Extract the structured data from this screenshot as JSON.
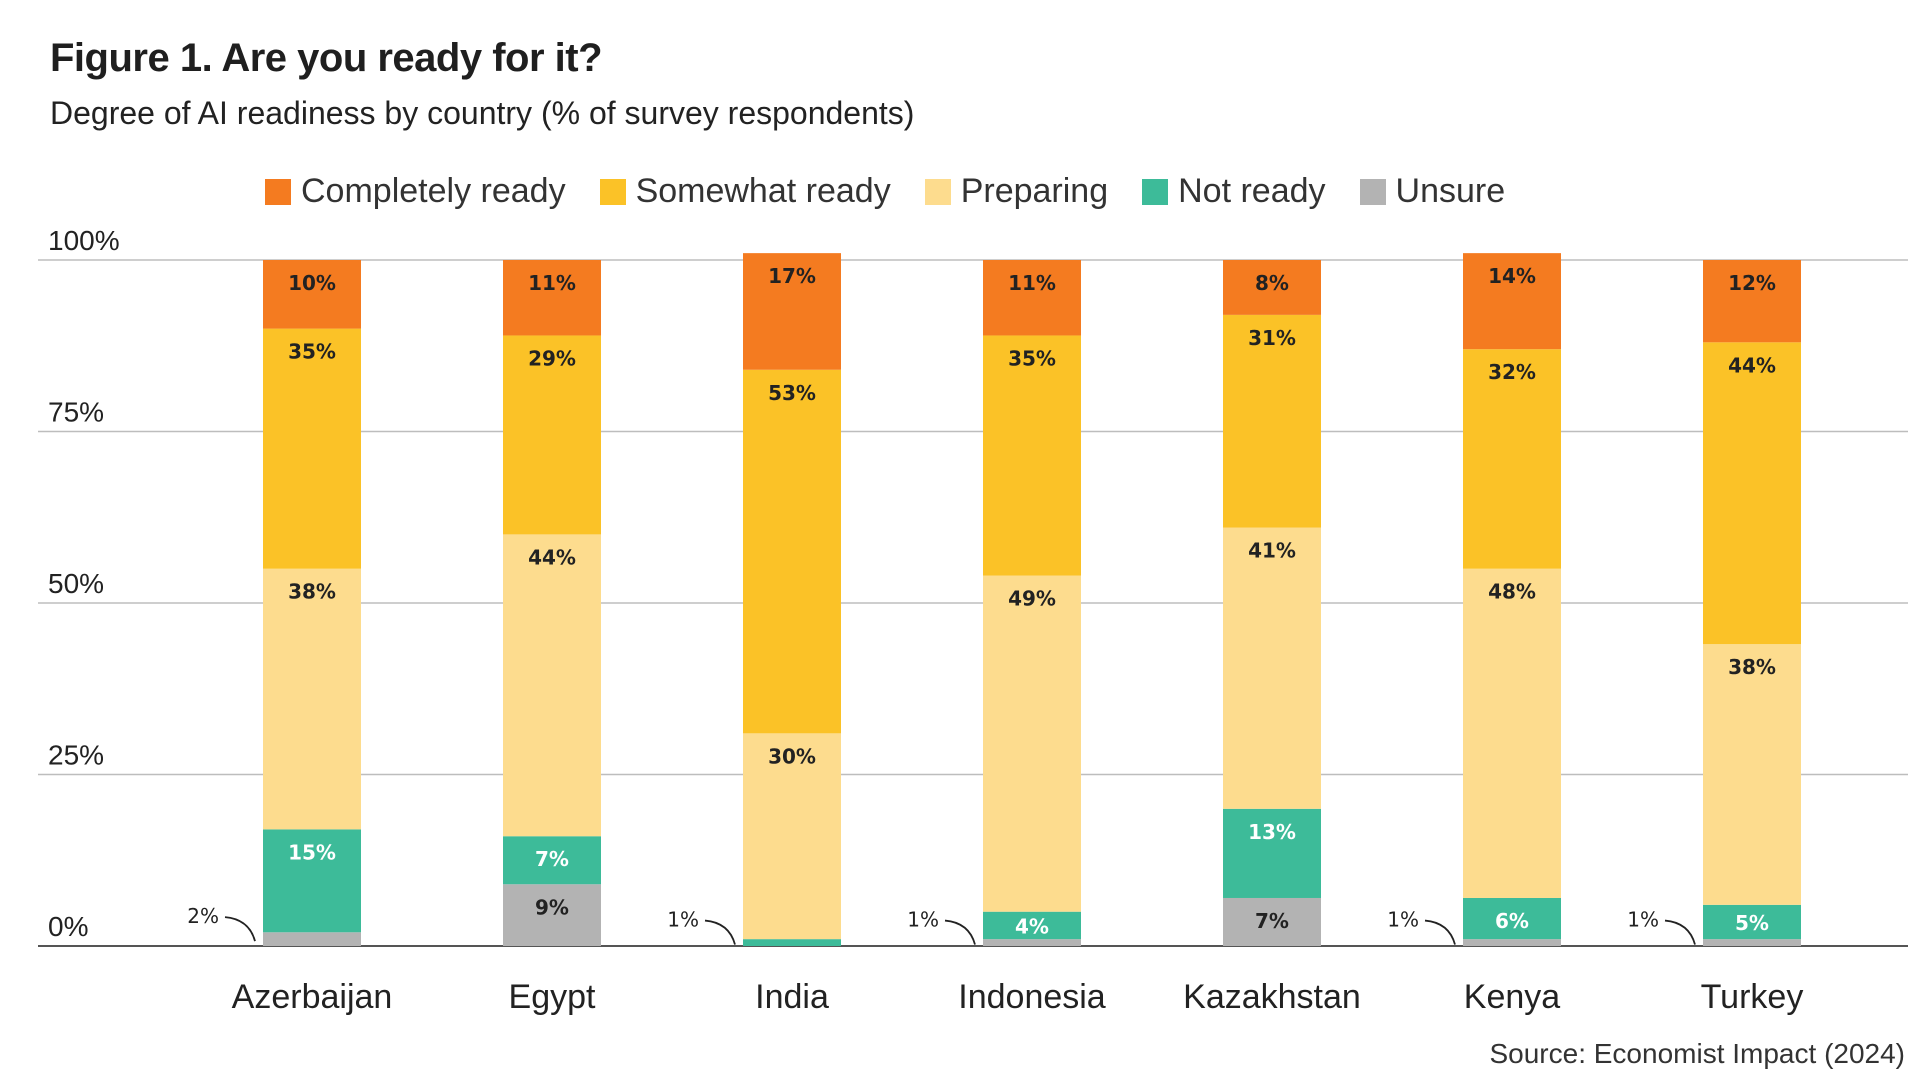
{
  "header": {
    "title": "Figure 1. Are you ready for it?",
    "subtitle": "Degree of AI readiness by country (% of survey respondents)"
  },
  "source": "Source: Economist Impact (2024)",
  "chart_data": {
    "type": "bar",
    "stacked": true,
    "title": "Figure 1. Are you ready for it?",
    "subtitle": "Degree of AI readiness by country (% of survey respondents)",
    "xlabel": "",
    "ylabel": "",
    "ylim": [
      0,
      100
    ],
    "yticks": [
      "0%",
      "25%",
      "50%",
      "75%",
      "100%"
    ],
    "grid": true,
    "legend_position": "top",
    "categories": [
      "Azerbaijan",
      "Egypt",
      "India",
      "Indonesia",
      "Kazakhstan",
      "Kenya",
      "Turkey"
    ],
    "series": [
      {
        "name": "Unsure",
        "color": "#b3b3b3",
        "values": [
          2,
          9,
          0,
          1,
          7,
          1,
          1
        ],
        "labels": [
          "2%",
          "9%",
          "",
          "1%",
          "7%",
          "1%",
          "1%"
        ]
      },
      {
        "name": "Not ready",
        "color": "#3dbb99",
        "values": [
          15,
          7,
          1,
          4,
          13,
          6,
          5
        ],
        "labels": [
          "15%",
          "7%",
          "1%",
          "4%",
          "13%",
          "6%",
          "5%"
        ]
      },
      {
        "name": "Preparing",
        "color": "#fddc8e",
        "values": [
          38,
          44,
          30,
          49,
          41,
          48,
          38
        ],
        "labels": [
          "38%",
          "44%",
          "30%",
          "49%",
          "41%",
          "48%",
          "38%"
        ]
      },
      {
        "name": "Somewhat ready",
        "color": "#fbc227",
        "values": [
          35,
          29,
          53,
          35,
          31,
          32,
          44
        ],
        "labels": [
          "35%",
          "29%",
          "53%",
          "35%",
          "31%",
          "32%",
          "44%"
        ]
      },
      {
        "name": "Completely ready",
        "color": "#f47b20",
        "values": [
          10,
          11,
          17,
          11,
          8,
          14,
          12
        ],
        "labels": [
          "10%",
          "11%",
          "17%",
          "11%",
          "8%",
          "14%",
          "12%"
        ]
      }
    ],
    "legend": [
      {
        "name": "Completely ready",
        "color": "#f47b20"
      },
      {
        "name": "Somewhat ready",
        "color": "#fbc227"
      },
      {
        "name": "Preparing",
        "color": "#fddc8e"
      },
      {
        "name": "Not ready",
        "color": "#3dbb99"
      },
      {
        "name": "Unsure",
        "color": "#b3b3b3"
      }
    ]
  }
}
